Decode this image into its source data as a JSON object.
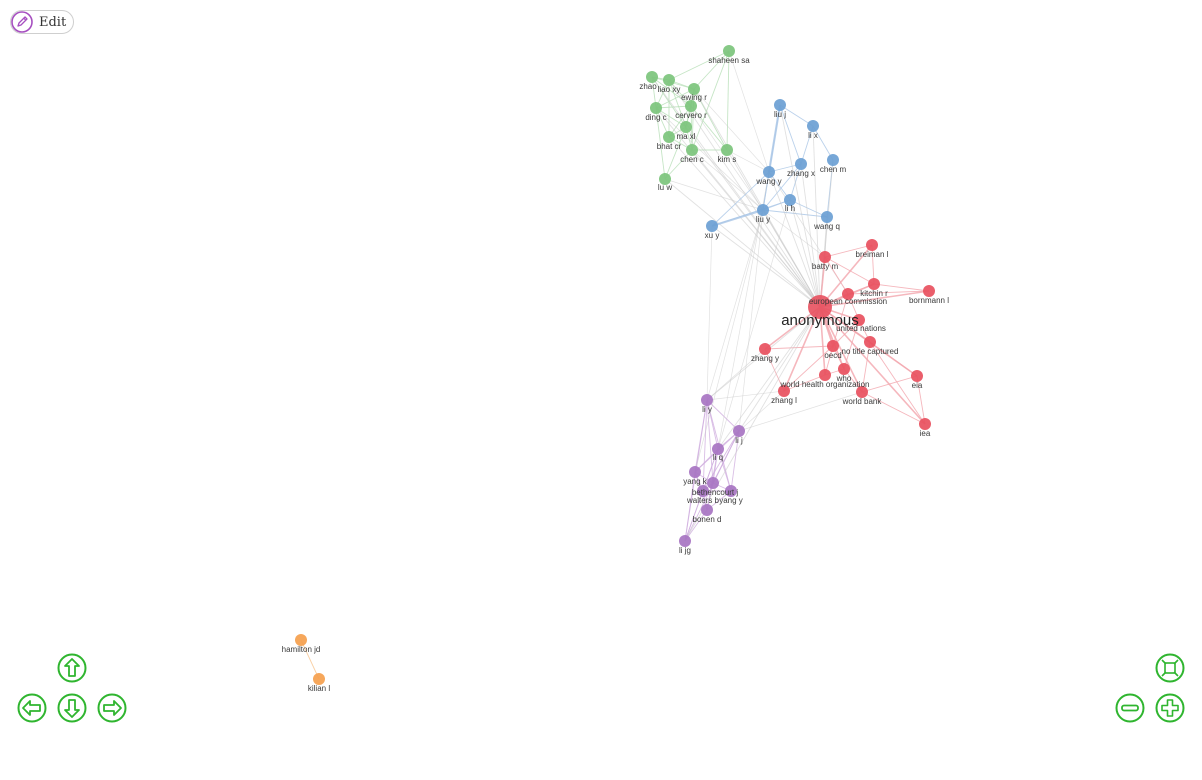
{
  "toolbar": {
    "edit_label": "Edit",
    "edit_icon": "pencil-icon"
  },
  "navigation": {
    "up": "arrow-up-icon",
    "left": "arrow-left-icon",
    "down": "arrow-down-icon",
    "right": "arrow-right-icon",
    "zoom_out": "minus-icon",
    "zoom_in": "plus-icon",
    "fit": "fit-screen-icon",
    "button_color": "#2fb52f"
  },
  "colors": {
    "green": "#7cc47c",
    "blue": "#6b9fd4",
    "red": "#e8505e",
    "purple": "#a774c2",
    "orange": "#f5a04d",
    "edge": "#c8c8c8",
    "edge_red": "#f3a5ad",
    "edge_blue": "#a9c6e6",
    "edge_green": "#b6deb6",
    "edge_purple": "#cfaedf"
  },
  "network": {
    "nodes": [
      {
        "id": "shaheen sa",
        "group": "green"
      },
      {
        "id": "zhao",
        "group": "green"
      },
      {
        "id": "liao xy",
        "group": "green"
      },
      {
        "id": "ewing r",
        "group": "green"
      },
      {
        "id": "ding c",
        "group": "green"
      },
      {
        "id": "cervero r",
        "group": "green"
      },
      {
        "id": "ma xl",
        "group": "green"
      },
      {
        "id": "bhat cr",
        "group": "green"
      },
      {
        "id": "chen c",
        "group": "green"
      },
      {
        "id": "kim s",
        "group": "green"
      },
      {
        "id": "lu w",
        "group": "green"
      },
      {
        "id": "liu j",
        "group": "blue"
      },
      {
        "id": "li x",
        "group": "blue"
      },
      {
        "id": "chen m",
        "group": "blue"
      },
      {
        "id": "zhang x",
        "group": "blue"
      },
      {
        "id": "wang y",
        "group": "blue"
      },
      {
        "id": "li h",
        "group": "blue"
      },
      {
        "id": "liu y",
        "group": "blue"
      },
      {
        "id": "wang q",
        "group": "blue"
      },
      {
        "id": "xu y",
        "group": "blue"
      },
      {
        "id": "breiman l",
        "group": "red"
      },
      {
        "id": "batty m",
        "group": "red"
      },
      {
        "id": "kitchin r",
        "group": "red"
      },
      {
        "id": "bornmann l",
        "group": "red"
      },
      {
        "id": "european commission",
        "group": "red"
      },
      {
        "id": "anonymous",
        "group": "red",
        "big": true
      },
      {
        "id": "united nations",
        "group": "red"
      },
      {
        "id": "no title captured",
        "group": "red"
      },
      {
        "id": "oecd",
        "group": "red"
      },
      {
        "id": "zhang y",
        "group": "red"
      },
      {
        "id": "who",
        "group": "red"
      },
      {
        "id": "world health organization",
        "group": "red"
      },
      {
        "id": "eia",
        "group": "red"
      },
      {
        "id": "zhang l",
        "group": "red"
      },
      {
        "id": "world bank",
        "group": "red"
      },
      {
        "id": "iea",
        "group": "red"
      },
      {
        "id": "li y",
        "group": "purple"
      },
      {
        "id": "li j",
        "group": "purple"
      },
      {
        "id": "li q",
        "group": "purple"
      },
      {
        "id": "yang k",
        "group": "purple"
      },
      {
        "id": "bethencourt j",
        "group": "purple"
      },
      {
        "id": "walters b",
        "group": "purple"
      },
      {
        "id": "yang y",
        "group": "purple"
      },
      {
        "id": "bonen d",
        "group": "purple"
      },
      {
        "id": "li jg",
        "group": "purple"
      },
      {
        "id": "hamilton jd",
        "group": "orange"
      },
      {
        "id": "kilian l",
        "group": "orange"
      }
    ]
  }
}
